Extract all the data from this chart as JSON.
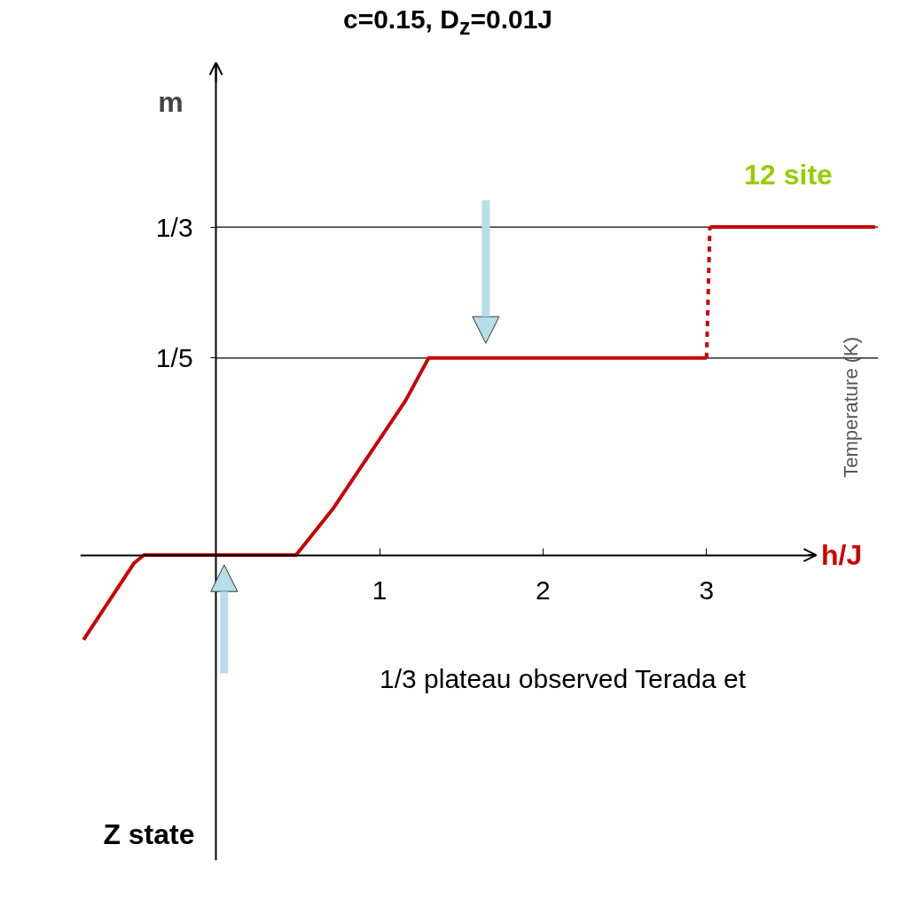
{
  "chart_data": {
    "type": "line",
    "title": "c=0.15, D$_{z}$=0.01J",
    "xlabel": "h/J",
    "ylabel": "m",
    "xlim": [
      -0.83,
      4.05
    ],
    "ylim": [
      -0.31,
      0.5
    ],
    "xticks": [
      1,
      2,
      3
    ],
    "yticks": [
      {
        "value": 0.2,
        "label": "1/5"
      },
      {
        "value": 0.333,
        "label": "1/3"
      }
    ],
    "grid": false,
    "series": [
      {
        "color": "#cc0000",
        "x": [
          -0.81,
          -0.5,
          -0.44,
          0.49,
          0.72,
          0.95,
          1.16,
          1.3,
          1.6,
          3.0
        ],
        "values": [
          -0.086,
          -0.008,
          0,
          0,
          0.048,
          0.105,
          0.157,
          0.2,
          0.2,
          0.2
        ]
      },
      {
        "color": "#cc0000",
        "line_style": "dashed",
        "x": [
          3.0,
          3.02
        ],
        "values": [
          0.2,
          0.333
        ]
      },
      {
        "color": "#cc0000",
        "x": [
          3.02,
          4.03
        ],
        "values": [
          0.333,
          0.333
        ]
      }
    ],
    "ref_lines": [
      {
        "axis": "y",
        "value": 0.2
      },
      {
        "axis": "y",
        "value": 0.333
      }
    ],
    "annotations": [
      "12 site",
      "Z state",
      "1/3 plateau observed Terada et",
      "Temperature (K)"
    ]
  }
}
